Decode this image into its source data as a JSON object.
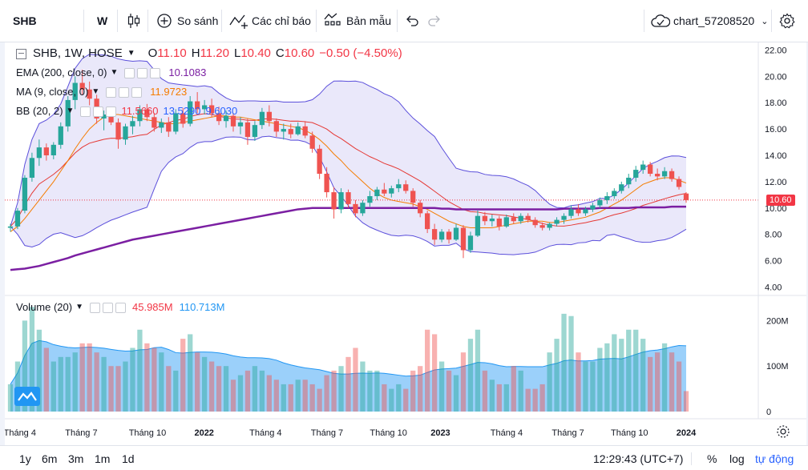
{
  "toolbar": {
    "symbol": "SHB",
    "interval": "W",
    "compare_label": "So sánh",
    "indicators_label": "Các chỉ báo",
    "templates_label": "Bản mẫu",
    "chart_name": "chart_57208520"
  },
  "legend": {
    "title": "SHB, 1W, HOSE",
    "open_label": "O",
    "open": "11.10",
    "high_label": "H",
    "high": "11.20",
    "low_label": "L",
    "low": "10.40",
    "close_label": "C",
    "close": "10.60",
    "change": "−0.50 (−4.50%)",
    "ema_label": "EMA (200, close, 0)",
    "ema_value": "10.1083",
    "ma_label": "MA (9, close, 0)",
    "ma_value": "11.9723",
    "bb_label": "BB (20, 2)",
    "bb_basis": "11.5660",
    "bb_upper": "13.5290",
    "bb_lower": "9.6030",
    "volume_label": "Volume (20)",
    "volume_value": "45.985M",
    "volume_ma": "110.713M"
  },
  "price_axis": [
    "22.00",
    "20.00",
    "18.00",
    "16.00",
    "14.00",
    "12.00",
    "10.00",
    "8.00",
    "6.00",
    "4.00"
  ],
  "last_price_tag": "10.60",
  "volume_axis": [
    "200M",
    "100M",
    "0"
  ],
  "time_axis": [
    "Tháng 4",
    "Tháng 7",
    "Tháng 10",
    "2022",
    "Tháng 4",
    "Tháng 7",
    "Tháng 10",
    "2023",
    "Tháng 4",
    "Tháng 7",
    "Tháng 10",
    "2024"
  ],
  "bottom": {
    "ranges": [
      "1y",
      "6m",
      "3m",
      "1m",
      "1d"
    ],
    "clock": "12:29:43 (UTC+7)",
    "percent": "%",
    "log": "log",
    "auto": "tự động"
  },
  "colors": {
    "up": "#26a69a",
    "down": "#ef5350",
    "ema": "#7b1fa2",
    "ma": "#f57c00",
    "bb": "#5b4fdb",
    "accent": "#2962ff"
  },
  "chart_data": {
    "type": "candlestick",
    "title": "SHB, 1W, HOSE",
    "ylim": [
      4,
      22
    ],
    "candles": [
      [
        8.5,
        8.8,
        8.2,
        8.6
      ],
      [
        8.6,
        10,
        8.4,
        9.8
      ],
      [
        9.8,
        12.5,
        9.6,
        12.3
      ],
      [
        12.3,
        14.2,
        12,
        13.8
      ],
      [
        13.8,
        15.2,
        13.2,
        14.6
      ],
      [
        14.6,
        14.9,
        13.6,
        14
      ],
      [
        14,
        15,
        13.7,
        14.8
      ],
      [
        14.8,
        16.5,
        14.5,
        16.2
      ],
      [
        16.2,
        18.5,
        15.8,
        18.2
      ],
      [
        18.2,
        20,
        17.5,
        19.5
      ],
      [
        19.5,
        20.5,
        18.6,
        19
      ],
      [
        19,
        19.6,
        17.8,
        18.3
      ],
      [
        18.3,
        18.6,
        16.4,
        16.8
      ],
      [
        16.8,
        17.4,
        15.9,
        17.1
      ],
      [
        17.1,
        17.6,
        16.3,
        16.5
      ],
      [
        16.5,
        16.8,
        14.5,
        15.2
      ],
      [
        15.2,
        16.4,
        14.8,
        16.2
      ],
      [
        16.2,
        17,
        15.6,
        16.6
      ],
      [
        16.6,
        17.8,
        16.2,
        17.5
      ],
      [
        17.5,
        17.9,
        16.6,
        16.9
      ],
      [
        16.9,
        17.2,
        15.8,
        16.1
      ],
      [
        16.1,
        16.8,
        15.7,
        16.5
      ],
      [
        16.5,
        16.9,
        15.4,
        15.8
      ],
      [
        15.8,
        17.5,
        15.6,
        17.2
      ],
      [
        17.2,
        17.6,
        16.1,
        16.4
      ],
      [
        16.4,
        18.5,
        16.2,
        18.1
      ],
      [
        18.1,
        18.8,
        17.2,
        17.5
      ],
      [
        17.5,
        18.2,
        17.1,
        17.8
      ],
      [
        17.8,
        18.3,
        16.9,
        17.2
      ],
      [
        17.2,
        17.7,
        16.3,
        16.6
      ],
      [
        16.6,
        17.4,
        16.1,
        17
      ],
      [
        17,
        17.2,
        15.8,
        16.2
      ],
      [
        16.2,
        16.9,
        15.6,
        16.5
      ],
      [
        16.5,
        16.8,
        14.8,
        15.4
      ],
      [
        15.4,
        16.6,
        15.1,
        16.3
      ],
      [
        16.3,
        17.6,
        16,
        17.3
      ],
      [
        17.3,
        17.8,
        16.2,
        16.6
      ],
      [
        16.6,
        16.8,
        15.4,
        15.8
      ],
      [
        15.8,
        16.4,
        15.2,
        16
      ],
      [
        16,
        16.4,
        15.3,
        15.6
      ],
      [
        15.6,
        16.5,
        15.5,
        16.2
      ],
      [
        16.2,
        16.6,
        15.3,
        15.5
      ],
      [
        15.5,
        15.8,
        14.2,
        14.5
      ],
      [
        14.5,
        14.8,
        12.2,
        12.6
      ],
      [
        12.6,
        13.1,
        10.8,
        11.2
      ],
      [
        11.2,
        11.6,
        9.2,
        9.9
      ],
      [
        9.9,
        11.5,
        9.6,
        11.2
      ],
      [
        11.2,
        11.4,
        10,
        10.3
      ],
      [
        10.3,
        10.6,
        9.3,
        9.6
      ],
      [
        9.6,
        10.6,
        9.4,
        10.4
      ],
      [
        10.4,
        11.3,
        10.1,
        10.9
      ],
      [
        10.9,
        11.6,
        10.6,
        11.4
      ],
      [
        11.4,
        11.9,
        10.9,
        11.1
      ],
      [
        11.1,
        11.7,
        10.8,
        11.5
      ],
      [
        11.5,
        12.2,
        11.2,
        11.8
      ],
      [
        11.8,
        12.1,
        11.1,
        11.3
      ],
      [
        11.3,
        11.5,
        10.1,
        10.4
      ],
      [
        10.4,
        10.6,
        9.3,
        9.6
      ],
      [
        9.6,
        9.8,
        8.1,
        8.4
      ],
      [
        8.4,
        8.8,
        7.2,
        7.6
      ],
      [
        7.6,
        8.4,
        7.4,
        8.2
      ],
      [
        8.2,
        8.4,
        7.3,
        7.6
      ],
      [
        7.6,
        8.8,
        7.5,
        8.5
      ],
      [
        8.5,
        8.7,
        6.2,
        6.8
      ],
      [
        6.8,
        8.2,
        6.6,
        7.9
      ],
      [
        7.9,
        9.8,
        7.8,
        9.4
      ],
      [
        9.4,
        9.7,
        8.7,
        9
      ],
      [
        9,
        9.5,
        8.6,
        9.2
      ],
      [
        9.2,
        9.4,
        8.3,
        8.6
      ],
      [
        8.6,
        9.5,
        8.5,
        9.3
      ],
      [
        9.3,
        9.6,
        8.8,
        9
      ],
      [
        9,
        9.6,
        8.8,
        9.4
      ],
      [
        9.4,
        9.6,
        8.9,
        9.1
      ],
      [
        9.1,
        9.3,
        8.5,
        8.7
      ],
      [
        8.7,
        8.9,
        8.3,
        8.5
      ],
      [
        8.5,
        8.9,
        8.3,
        8.8
      ],
      [
        8.8,
        9.3,
        8.6,
        9.1
      ],
      [
        9.1,
        9.6,
        8.8,
        9.4
      ],
      [
        9.4,
        10.2,
        9.2,
        9.9
      ],
      [
        9.9,
        10.3,
        9.4,
        9.6
      ],
      [
        9.6,
        10.1,
        9.4,
        9.9
      ],
      [
        9.9,
        10.4,
        9.7,
        10.2
      ],
      [
        10.2,
        10.8,
        10,
        10.6
      ],
      [
        10.6,
        11.2,
        10.3,
        10.9
      ],
      [
        10.9,
        11.5,
        10.7,
        11.3
      ],
      [
        11.3,
        12,
        11.1,
        11.8
      ],
      [
        11.8,
        12.6,
        11.5,
        12.3
      ],
      [
        12.3,
        13.2,
        12,
        12.9
      ],
      [
        12.9,
        13.6,
        12.6,
        13.3
      ],
      [
        13.3,
        13.5,
        12.4,
        12.6
      ],
      [
        12.6,
        13,
        12.1,
        12.4
      ],
      [
        12.4,
        13.1,
        12.2,
        12.8
      ],
      [
        12.8,
        13,
        12,
        12.2
      ],
      [
        12.2,
        12.4,
        11.4,
        11.6
      ],
      [
        11.1,
        11.2,
        10.4,
        10.6
      ]
    ],
    "volume_millions": [
      60,
      110,
      200,
      230,
      180,
      140,
      110,
      120,
      120,
      130,
      150,
      150,
      130,
      120,
      100,
      100,
      110,
      140,
      180,
      150,
      140,
      130,
      100,
      90,
      160,
      170,
      130,
      120,
      110,
      100,
      100,
      70,
      80,
      90,
      100,
      90,
      80,
      70,
      60,
      60,
      70,
      70,
      60,
      50,
      80,
      90,
      100,
      120,
      140,
      110,
      90,
      90,
      60,
      50,
      60,
      50,
      90,
      100,
      180,
      170,
      110,
      90,
      80,
      130,
      160,
      180,
      90,
      70,
      60,
      60,
      100,
      90,
      50,
      50,
      60,
      130,
      160,
      215,
      210,
      130,
      110,
      110,
      140,
      150,
      170,
      160,
      180,
      180,
      160,
      120,
      130,
      150,
      130,
      110,
      45
    ],
    "ema200": [
      5.3,
      5.35,
      5.4,
      5.5,
      5.6,
      5.75,
      5.9,
      6.05,
      6.2,
      6.4,
      6.55,
      6.7,
      6.85,
      7.0,
      7.15,
      7.3,
      7.45,
      7.6,
      7.7,
      7.8,
      7.9,
      8.0,
      8.1,
      8.2,
      8.3,
      8.4,
      8.5,
      8.6,
      8.7,
      8.8,
      8.9,
      9.0,
      9.1,
      9.2,
      9.3,
      9.4,
      9.5,
      9.6,
      9.7,
      9.8,
      9.9,
      9.95,
      10.0,
      10.0,
      10.0,
      10.0,
      10.0,
      10.0,
      10.0,
      10.0,
      10.0,
      10.0,
      10.0,
      10.0,
      10.0,
      10.0,
      10.0,
      10.0,
      10.0,
      10.0,
      9.95,
      9.95,
      9.9,
      9.9,
      9.9,
      9.9,
      9.9,
      9.9,
      9.9,
      9.9,
      9.9,
      9.9,
      9.9,
      9.9,
      9.9,
      9.9,
      9.9,
      9.95,
      9.95,
      9.95,
      9.95,
      9.95,
      10.0,
      10.0,
      10.0,
      10.0,
      10.0,
      10.05,
      10.05,
      10.05,
      10.05,
      10.05,
      10.1,
      10.1,
      10.1
    ],
    "ma9": [
      8.2,
      8.6,
      9.2,
      9.9,
      10.6,
      11.3,
      12,
      12.8,
      13.6,
      14.5,
      15.3,
      16,
      16.5,
      16.9,
      17.1,
      17.1,
      17,
      16.9,
      16.8,
      16.7,
      16.6,
      16.5,
      16.4,
      16.4,
      16.5,
      16.6,
      16.7,
      16.8,
      16.9,
      17,
      17,
      16.9,
      16.9,
      16.8,
      16.7,
      16.6,
      16.5,
      16.4,
      16.3,
      16.2,
      16.1,
      15.9,
      15.6,
      15.2,
      14.7,
      14.1,
      13.6,
      13,
      12.5,
      12,
      11.5,
      11.1,
      10.8,
      10.6,
      10.5,
      10.4,
      10.3,
      10.1,
      9.9,
      9.6,
      9.3,
      9,
      8.8,
      8.6,
      8.5,
      8.5,
      8.5,
      8.5,
      8.6,
      8.7,
      8.8,
      8.9,
      9,
      9,
      9,
      8.9,
      8.9,
      9,
      9.1,
      9.2,
      9.3,
      9.5,
      9.7,
      10,
      10.3,
      10.6,
      11,
      11.4,
      11.8,
      12,
      12.2,
      12.3,
      12.3,
      12.1,
      11.9
    ]
  }
}
